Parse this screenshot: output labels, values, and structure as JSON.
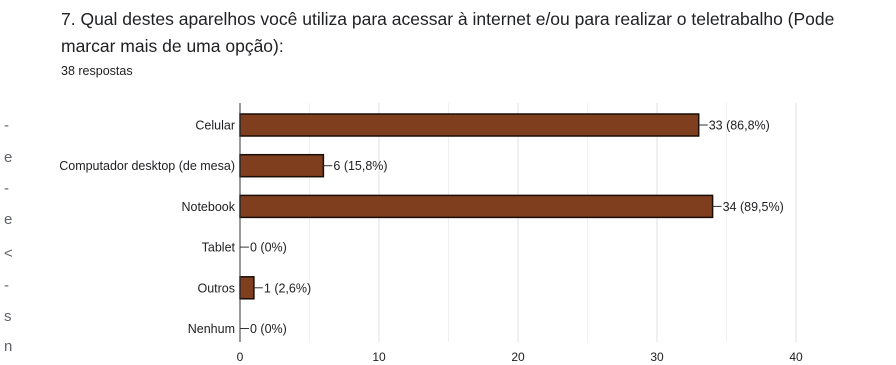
{
  "question": {
    "title": "7. Qual destes aparelhos você utiliza para acessar à internet e/ou para realizar o teletrabalho (Pode marcar mais de uma opção):",
    "responses": "38 respostas"
  },
  "left_edge_glyphs": [
    "-",
    "e",
    "-",
    "e",
    "<",
    "-",
    "s",
    "n"
  ],
  "chart_data": {
    "type": "bar",
    "orientation": "horizontal",
    "title": "",
    "xlabel": "",
    "ylabel": "",
    "categories": [
      "Celular",
      "Computador desktop (de mesa)",
      "Notebook",
      "Tablet",
      "Outros",
      "Nenhum"
    ],
    "values": [
      33,
      6,
      34,
      0,
      1,
      0
    ],
    "data_labels": [
      "33 (86,8%)",
      "6 (15,8%)",
      "34 (89,5%)",
      "0 (0%)",
      "1 (2,6%)",
      "0 (0%)"
    ],
    "xlim": [
      0,
      40
    ],
    "xticks": [
      0,
      10,
      20,
      30,
      40
    ],
    "grid": true,
    "colors": {
      "bar_fill": "#7f3f1f",
      "bar_stroke": "#1a0d05",
      "grid": "#e0e0e0",
      "axis": "#333333"
    }
  }
}
